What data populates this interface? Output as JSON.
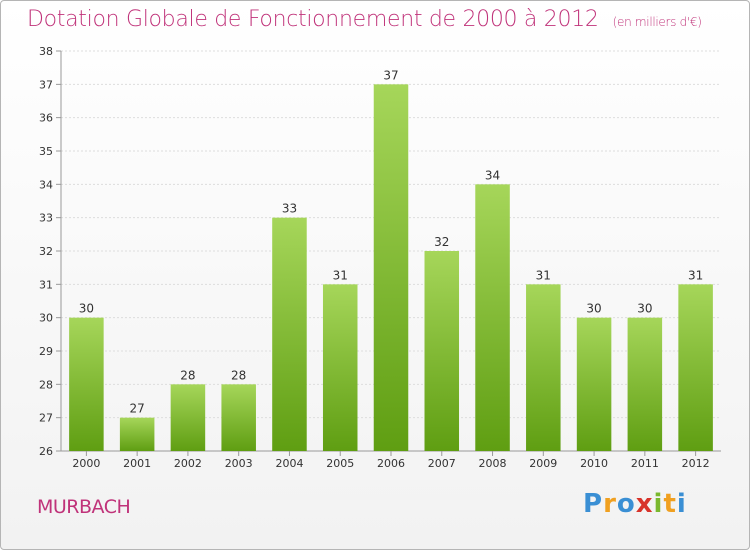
{
  "title": "Dotation Globale de Fonctionnement de 2000 à 2012",
  "subtitle": "(en milliers d'€)",
  "commune": "MURBACH",
  "brand": {
    "letters": [
      "P",
      "r",
      "o",
      "x",
      "i",
      "t",
      "i"
    ],
    "colors": [
      "#3a8fd4",
      "#f0a020",
      "#3a8fd4",
      "#d8332a",
      "#7ab82e",
      "#f0a020",
      "#3a8fd4"
    ]
  },
  "colors": {
    "title": "#c0337a",
    "bar_light": "#a6d65a",
    "bar_dark": "#5f9e12",
    "grid": "#dddddd",
    "axis": "#999999"
  },
  "chart_data": {
    "type": "bar",
    "categories": [
      "2000",
      "2001",
      "2002",
      "2003",
      "2004",
      "2005",
      "2006",
      "2007",
      "2008",
      "2009",
      "2010",
      "2011",
      "2012"
    ],
    "values": [
      30,
      27,
      28,
      28,
      33,
      31,
      37,
      32,
      34,
      31,
      30,
      30,
      31
    ],
    "title": "Dotation Globale de Fonctionnement de 2000 à 2012",
    "subtitle": "(en milliers d'€)",
    "xlabel": "",
    "ylabel": "",
    "ylim": [
      26,
      38
    ],
    "yticks": [
      26,
      27,
      28,
      29,
      30,
      31,
      32,
      33,
      34,
      35,
      36,
      37,
      38
    ],
    "grid": true
  }
}
